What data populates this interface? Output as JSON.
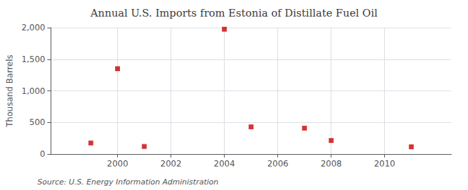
{
  "chart_data": {
    "type": "scatter",
    "title": "Annual U.S. Imports from Estonia of Distillate Fuel Oil",
    "ylabel": "Thousand Barrels",
    "annotations": [
      "Source: U.S. Energy Information Administration"
    ],
    "x": [
      1999,
      2000,
      2001,
      2004,
      2005,
      2007,
      2008,
      2011
    ],
    "values": [
      175,
      1350,
      120,
      1975,
      430,
      410,
      215,
      115
    ],
    "color": "#cc0000",
    "marker": "square",
    "xlim": [
      1997.5,
      2012.5
    ],
    "xticks": [
      2000,
      2002,
      2004,
      2006,
      2008,
      2010
    ],
    "ylim": [
      0,
      2000
    ],
    "yticks": [
      0,
      500,
      {
        "value": 1000,
        "label": "1,000"
      },
      {
        "value": 1500,
        "label": "1,500"
      },
      {
        "value": 2000,
        "label": "2,000"
      }
    ],
    "grid": true
  }
}
